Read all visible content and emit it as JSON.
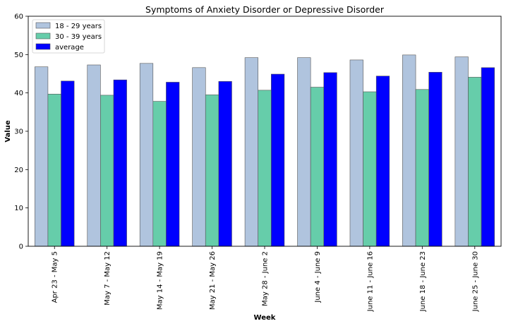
{
  "chart_data": {
    "type": "bar",
    "title": "Symptoms of Anxiety Disorder or Depressive Disorder",
    "xlabel": "Week",
    "ylabel": "Value",
    "ylim": [
      0,
      60
    ],
    "yticks": [
      0,
      10,
      20,
      30,
      40,
      50,
      60
    ],
    "grid": false,
    "legend_position": "top-left",
    "categories": [
      "Apr 23 - May 5",
      "May 7 - May 12",
      "May 14 - May 19",
      "May 21 - May 26",
      "May 28 - June 2",
      "June 4 - June 9",
      "June 11 - June 16",
      "June 18 - June 23",
      "June 25 - June 30"
    ],
    "series": [
      {
        "name": "18 - 29 years",
        "color": "#b0c4de",
        "values": [
          46.8,
          47.3,
          47.7,
          46.6,
          49.2,
          49.2,
          48.6,
          49.9,
          49.4
        ]
      },
      {
        "name": "30 - 39 years",
        "color": "#66cdaa",
        "values": [
          39.7,
          39.4,
          37.8,
          39.5,
          40.7,
          41.5,
          40.3,
          40.9,
          44.1
        ]
      },
      {
        "name": "average",
        "color": "#0000ff",
        "values": [
          43.1,
          43.4,
          42.8,
          43.0,
          44.9,
          45.3,
          44.4,
          45.4,
          46.6
        ]
      }
    ]
  }
}
